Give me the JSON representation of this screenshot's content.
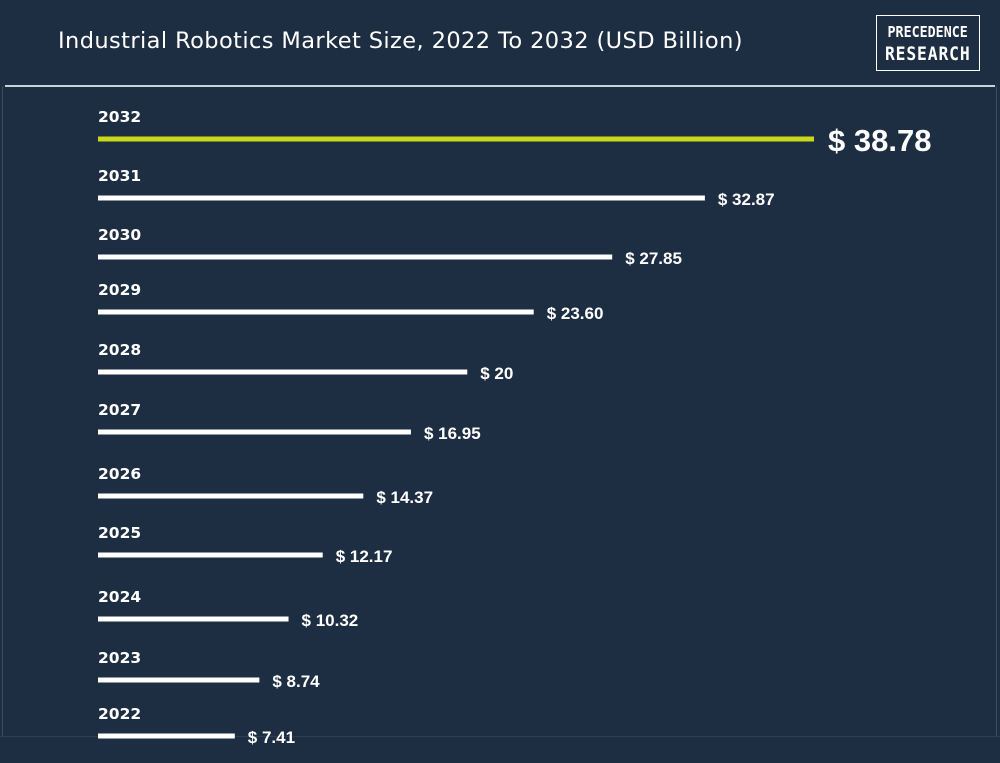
{
  "header": {
    "title": "Industrial Robotics Market Size, 2022 To 2032 (USD Billion)",
    "logo_line1": "PRECEDENCE",
    "logo_line2": "RESEARCH"
  },
  "colors": {
    "background": "#1d2e42",
    "bar": "#ffffff",
    "highlight_bar": "#c8d91a",
    "text": "#ffffff"
  },
  "chart_data": {
    "type": "bar",
    "orientation": "horizontal",
    "title": "Industrial Robotics Market Size, 2022 To 2032 (USD Billion)",
    "categories": [
      "2032",
      "2031",
      "2030",
      "2029",
      "2028",
      "2027",
      "2026",
      "2025",
      "2024",
      "2023",
      "2022"
    ],
    "values": [
      38.78,
      32.87,
      27.85,
      23.6,
      20,
      16.95,
      14.37,
      12.17,
      10.32,
      8.74,
      7.41
    ],
    "value_labels": [
      "$ 38.78",
      "$ 32.87",
      "$ 27.85",
      "$ 23.60",
      "$ 20",
      "$ 16.95",
      "$ 14.37",
      "$ 12.17",
      "$ 10.32",
      "$ 8.74",
      "$ 7.41"
    ],
    "highlight_category": "2032",
    "grid": false,
    "legend": "none"
  }
}
